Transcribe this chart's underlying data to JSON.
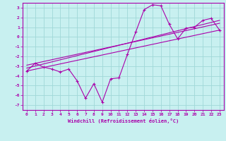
{
  "xlabel": "Windchill (Refroidissement éolien,°C)",
  "bg_color": "#c8f0f0",
  "grid_color": "#a0d8d8",
  "line_color": "#aa00aa",
  "xlim": [
    -0.5,
    23.5
  ],
  "ylim": [
    -7.5,
    3.5
  ],
  "yticks": [
    -7,
    -6,
    -5,
    -4,
    -3,
    -2,
    -1,
    0,
    1,
    2,
    3
  ],
  "xticks": [
    0,
    1,
    2,
    3,
    4,
    5,
    6,
    7,
    8,
    9,
    10,
    11,
    12,
    13,
    14,
    15,
    16,
    17,
    18,
    19,
    20,
    21,
    22,
    23
  ],
  "main_series_x": [
    0,
    1,
    2,
    3,
    4,
    5,
    6,
    7,
    8,
    9,
    10,
    11,
    12,
    13,
    14,
    15,
    16,
    17,
    18,
    19,
    20,
    21,
    22,
    23
  ],
  "main_series_y": [
    -3.5,
    -2.7,
    -3.1,
    -3.3,
    -3.6,
    -3.3,
    -4.5,
    -6.3,
    -4.8,
    -6.7,
    -4.3,
    -4.2,
    -1.8,
    0.5,
    2.8,
    3.3,
    3.2,
    1.3,
    -0.2,
    0.9,
    1.0,
    1.7,
    1.9,
    0.7
  ],
  "line1_x": [
    0,
    23
  ],
  "line1_y": [
    -3.2,
    1.7
  ],
  "line2_x": [
    0,
    23
  ],
  "line2_y": [
    -2.9,
    1.4
  ],
  "line3_x": [
    0,
    23
  ],
  "line3_y": [
    -3.5,
    0.7
  ]
}
